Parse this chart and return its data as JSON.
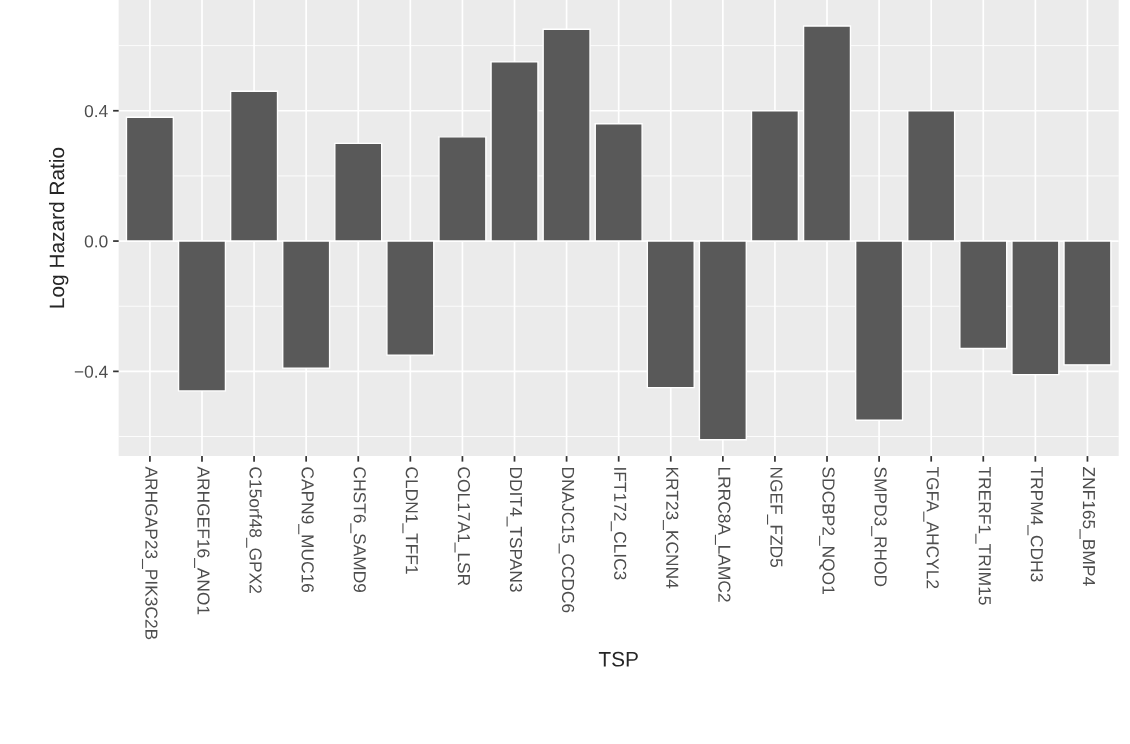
{
  "chart_data": {
    "type": "bar",
    "xlabel": "TSP",
    "ylabel": "Log Hazard Ratio",
    "categories": [
      "ARHGAP23_PIK3C2B",
      "ARHGEF16_ANO1",
      "C15orf48_GPX2",
      "CAPN9_MUC16",
      "CHST6_SAMD9",
      "CLDN1_TFF1",
      "COL17A1_LSR",
      "DDIT4_TSPAN3",
      "DNAJC15_CCDC6",
      "IFT172_CLIC3",
      "KRT23_KCNN4",
      "LRRC8A_LAMC2",
      "NGEF_FZD5",
      "SDCBP2_NQO1",
      "SMPD3_RHOD",
      "TGFA_AHCYL2",
      "TRERF1_TRIM15",
      "TRPM4_CDH3",
      "ZNF165_BMP4"
    ],
    "values": [
      0.38,
      -0.46,
      0.46,
      -0.39,
      0.3,
      -0.35,
      0.32,
      0.55,
      0.65,
      0.36,
      -0.45,
      -0.61,
      0.4,
      0.66,
      -0.55,
      0.4,
      -0.33,
      -0.41,
      -0.38
    ],
    "color": "#595959",
    "ylim": [
      -0.66,
      0.74
    ],
    "yticks": [
      {
        "value": -0.4,
        "label": "−0.4"
      },
      {
        "value": 0.0,
        "label": "0.0"
      },
      {
        "value": 0.4,
        "label": "0.4"
      }
    ],
    "grid": true
  }
}
